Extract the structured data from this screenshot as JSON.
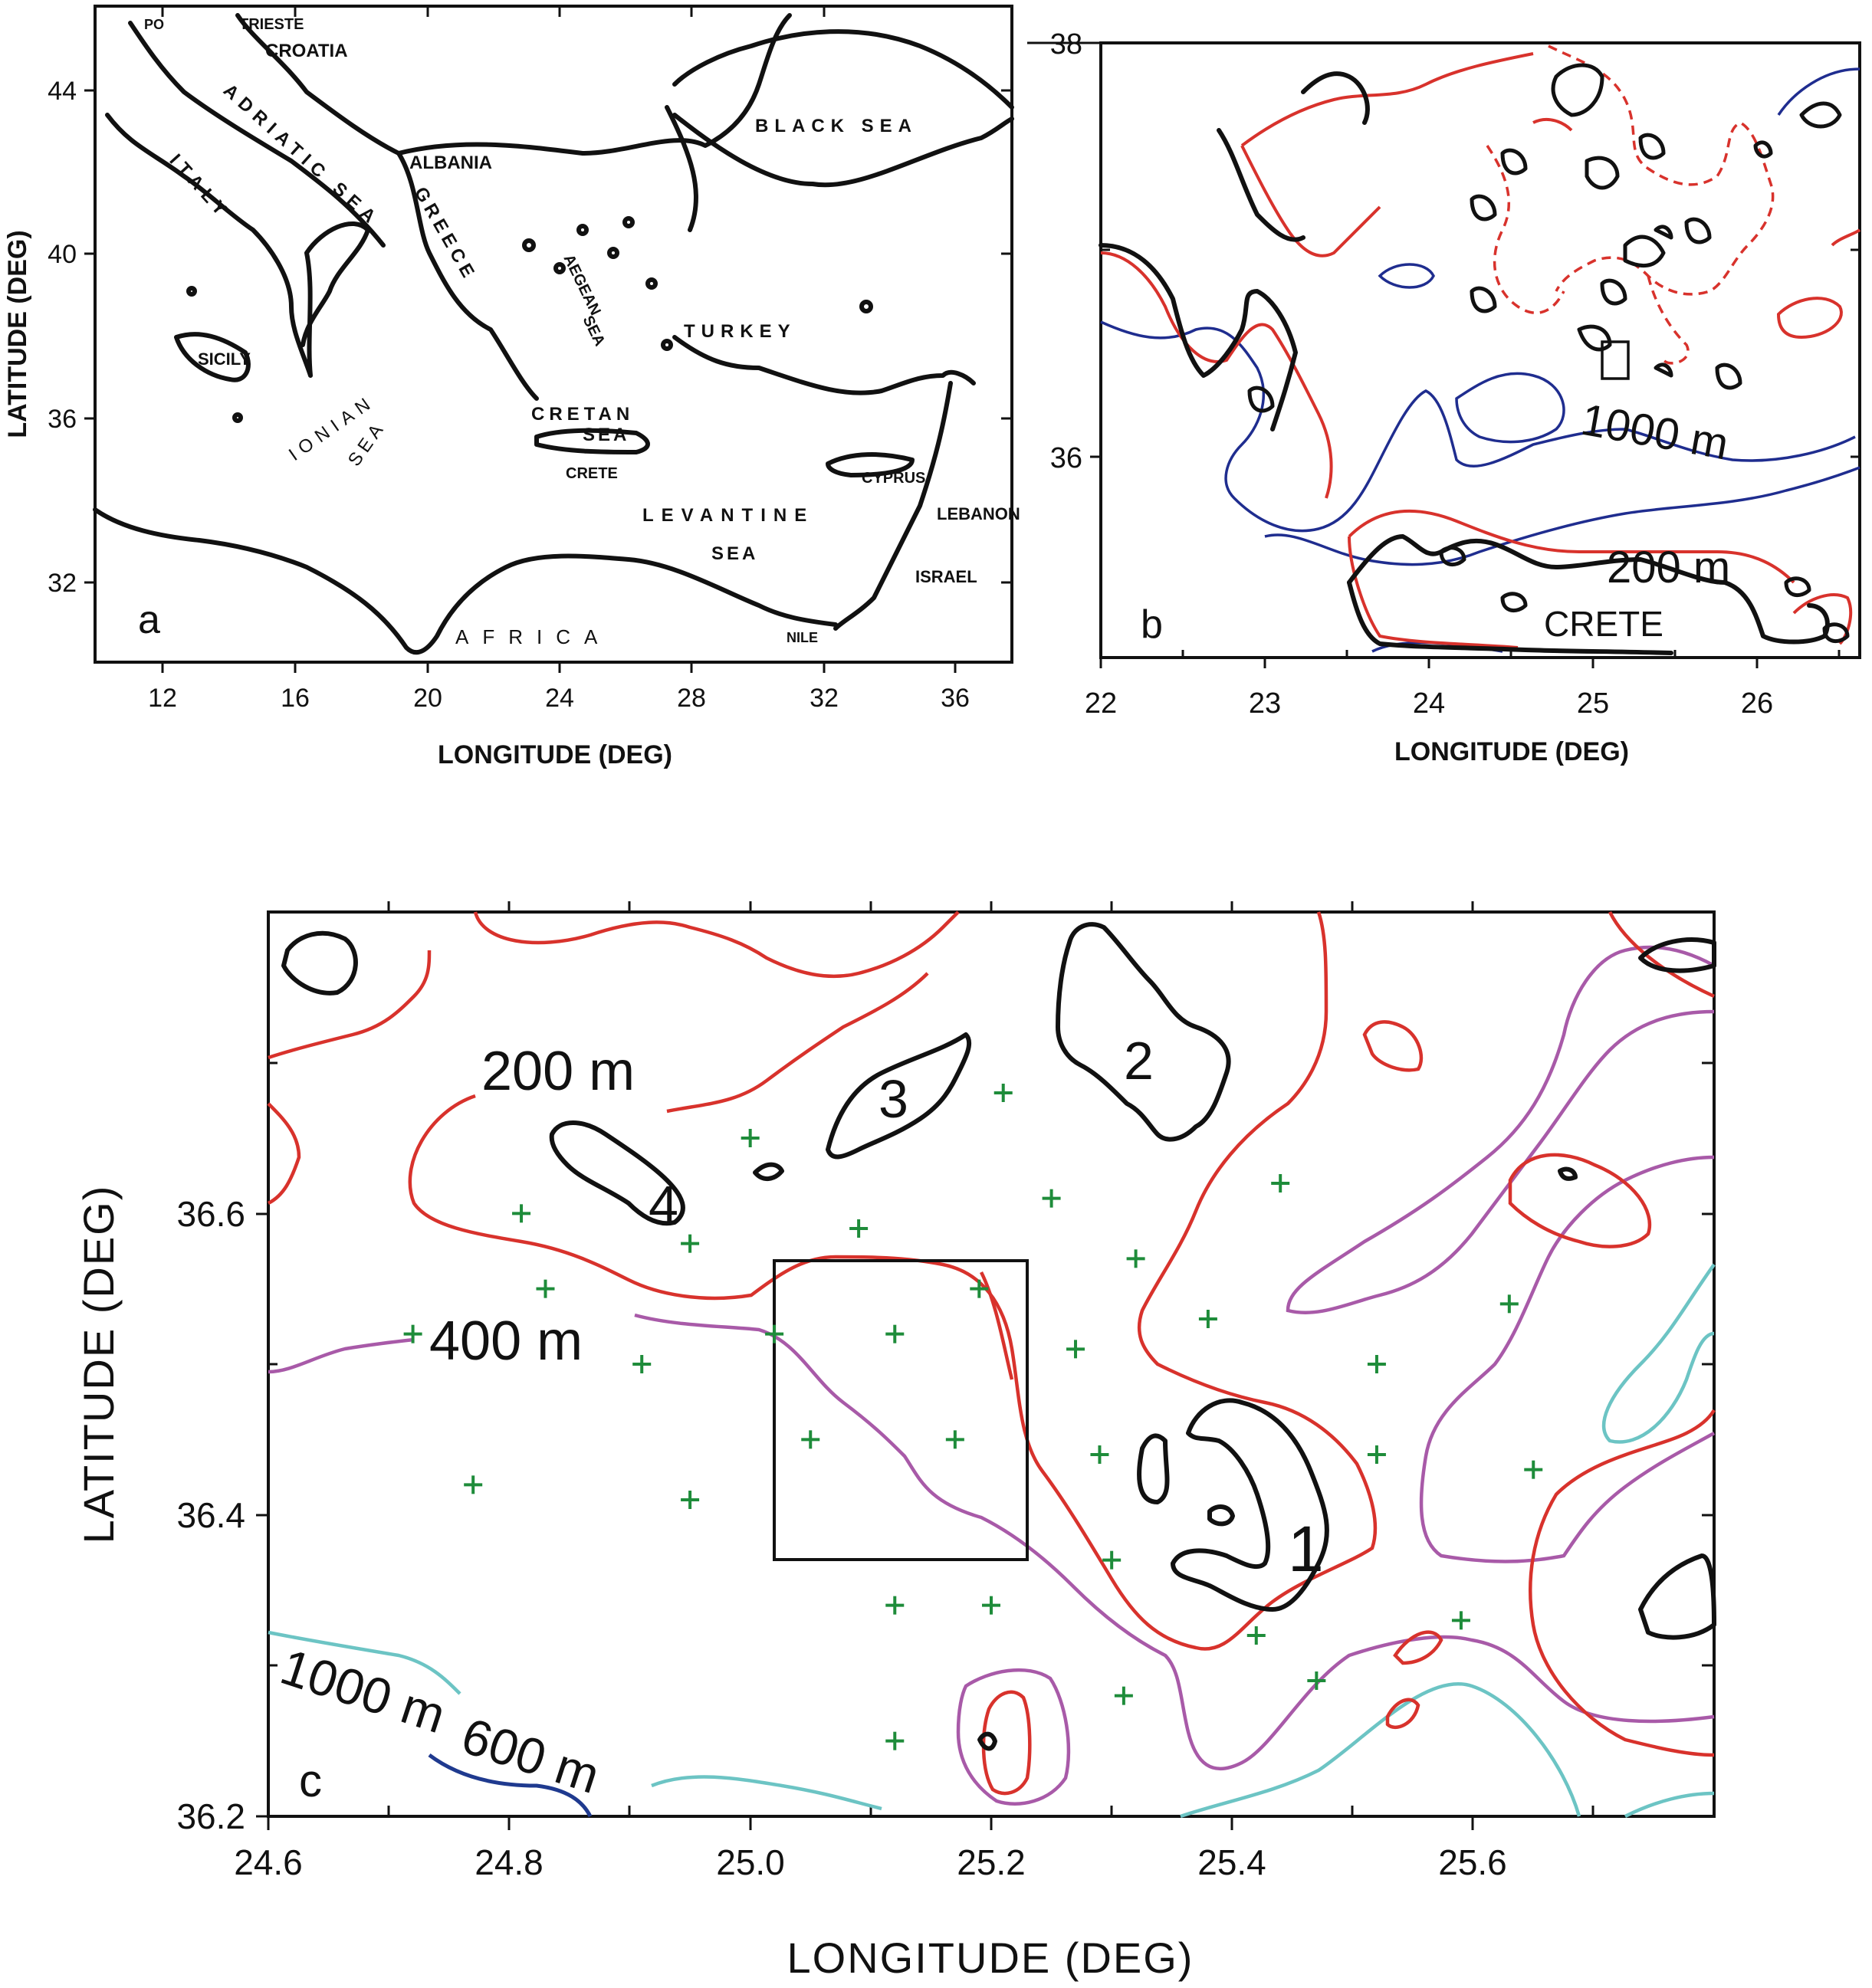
{
  "panel_a": {
    "letter": "a",
    "xlabel": "LONGITUDE (DEG)",
    "ylabel": "LATITUDE (DEG)",
    "xticks": [
      "12",
      "16",
      "20",
      "24",
      "28",
      "32",
      "36"
    ],
    "yticks": [
      "44",
      "40",
      "36",
      "32"
    ],
    "places": {
      "po": "PO",
      "trieste": "TRIESTE",
      "croatia": "CROATIA",
      "adriatic": "ADRIATIC SEA",
      "italy": "ITALY",
      "albania": "ALBANIA",
      "greece": "GREECE",
      "aegean": "AEGEAN",
      "aegean_sea": "SEA",
      "black_sea": "BLACK SEA",
      "turkey": "TURKEY",
      "sicily": "SICILY",
      "ionian": "IONIAN",
      "ionian_sea": "SEA",
      "cretan": "CRETAN",
      "cretan_sea": "SEA",
      "crete": "CRETE",
      "cyprus": "CYPRUS",
      "lebanon": "LEBANON",
      "israel": "ISRAEL",
      "levantine": "LEVANTINE",
      "levantine_sea": "SEA",
      "africa": "AFRICA",
      "nile": "NILE"
    }
  },
  "panel_b": {
    "letter": "b",
    "xlabel": "LONGITUDE (DEG)",
    "xticks": [
      "22",
      "23",
      "24",
      "25",
      "26"
    ],
    "yticks": [
      "38",
      "36"
    ],
    "labels": {
      "iso1000": "1000 m",
      "iso200": "200 m",
      "crete": "CRETE"
    }
  },
  "panel_c": {
    "letter": "c",
    "xlabel": "LONGITUDE (DEG)",
    "ylabel": "LATITUDE (DEG)",
    "xticks": [
      "24.6",
      "24.8",
      "25.0",
      "25.2",
      "25.4",
      "25.6"
    ],
    "yticks": [
      "36.6",
      "36.4",
      "36.2"
    ],
    "labels": {
      "iso200": "200 m",
      "iso400": "400 m",
      "iso600": "600 m",
      "iso1000": "1000 m"
    },
    "islands": [
      "1",
      "2",
      "3",
      "4"
    ],
    "colors": {
      "200m": "#d8322c",
      "400m": "#a85aa8",
      "600m": "#6cc4c4",
      "1000m": "#1f3a8f",
      "stations": "#1e8c3a"
    },
    "stations_deg": [
      [
        24.72,
        36.52
      ],
      [
        24.77,
        36.42
      ],
      [
        24.81,
        36.6
      ],
      [
        24.83,
        36.55
      ],
      [
        24.91,
        36.5
      ],
      [
        24.95,
        36.58
      ],
      [
        24.95,
        36.41
      ],
      [
        25.0,
        36.65
      ],
      [
        25.02,
        36.52
      ],
      [
        25.05,
        36.45
      ],
      [
        25.09,
        36.59
      ],
      [
        25.12,
        36.52
      ],
      [
        25.12,
        36.34
      ],
      [
        25.12,
        36.25
      ],
      [
        25.17,
        36.45
      ],
      [
        25.19,
        36.55
      ],
      [
        25.2,
        36.34
      ],
      [
        25.21,
        36.68
      ],
      [
        25.25,
        36.61
      ],
      [
        25.27,
        36.51
      ],
      [
        25.29,
        36.44
      ],
      [
        25.3,
        36.37
      ],
      [
        25.31,
        36.28
      ],
      [
        25.32,
        36.57
      ],
      [
        25.38,
        36.53
      ],
      [
        25.42,
        36.32
      ],
      [
        25.44,
        36.62
      ],
      [
        25.47,
        36.29
      ],
      [
        25.52,
        36.5
      ],
      [
        25.52,
        36.44
      ],
      [
        25.59,
        36.33
      ],
      [
        25.63,
        36.54
      ],
      [
        25.65,
        36.43
      ]
    ]
  }
}
